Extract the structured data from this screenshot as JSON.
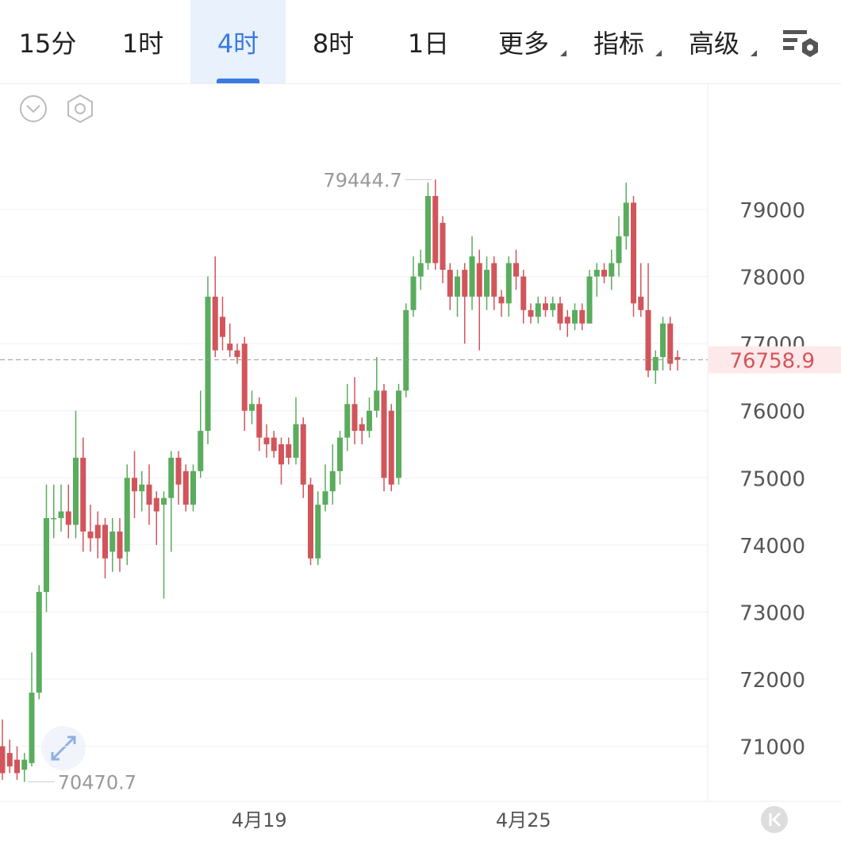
{
  "tabs": [
    "15分",
    "1时",
    "4时",
    "8时",
    "1日",
    "更多",
    "指标",
    "高级"
  ],
  "chart_data": {
    "type": "candlestick",
    "categories": [
      null,
      null,
      null,
      null,
      null,
      null,
      null,
      null,
      null,
      null,
      null,
      null,
      null,
      null,
      null,
      null,
      null,
      null,
      null,
      null,
      null,
      null,
      null,
      null,
      null,
      null,
      null,
      null,
      null,
      null,
      null,
      null,
      null,
      null,
      null,
      "4月19",
      null,
      null,
      null,
      null,
      null,
      null,
      null,
      null,
      null,
      null,
      null,
      null,
      null,
      null,
      null,
      null,
      null,
      null,
      null,
      null,
      null,
      null,
      null,
      null,
      null,
      null,
      null,
      null,
      null,
      null,
      null,
      null,
      null,
      null,
      null,
      "4月25",
      null,
      null,
      null,
      null,
      null,
      null,
      null,
      null,
      null,
      null,
      null,
      null,
      null,
      null,
      null,
      null,
      null,
      null,
      null,
      null,
      null
    ],
    "open": [
      71000,
      70900,
      70800,
      70650,
      70750,
      71800,
      73300,
      74400,
      74400,
      74500,
      74300,
      75300,
      74200,
      74300,
      74300,
      73900,
      74200,
      73900,
      75000,
      74800,
      74900,
      74700,
      74600,
      74700,
      75300,
      75100,
      74600,
      75100,
      75700,
      77700,
      77400,
      77000,
      76900,
      77000,
      76000,
      76100,
      75600,
      75600,
      75500,
      75500,
      75300,
      75800,
      74900,
      73800,
      74600,
      74800,
      75100,
      75600,
      76100,
      75800,
      75700,
      76000,
      76300,
      76000,
      75000,
      76300,
      77500,
      78000,
      78200,
      79200,
      78800,
      78100,
      77700,
      78100,
      77700,
      78200,
      77700,
      78200,
      77700,
      77600,
      78200,
      78000,
      77500,
      77400,
      77600,
      77500,
      77600,
      77400,
      77300,
      77500,
      77300,
      78000,
      78100,
      78000,
      78200,
      78600,
      79100,
      77700,
      77500,
      76600,
      76800,
      77300,
      76800
    ],
    "high": [
      71400,
      71100,
      71000,
      70900,
      72400,
      73400,
      74900,
      74900,
      74900,
      74900,
      76000,
      75600,
      74600,
      74500,
      74400,
      74400,
      74400,
      75200,
      75400,
      75100,
      75200,
      74800,
      74800,
      75400,
      75400,
      75200,
      75200,
      76300,
      78000,
      78300,
      77700,
      77300,
      77000,
      77100,
      76300,
      76200,
      75800,
      75700,
      75600,
      75600,
      76200,
      75900,
      75000,
      74800,
      75200,
      75500,
      75700,
      76400,
      76500,
      75900,
      76200,
      76800,
      76400,
      76100,
      76400,
      77600,
      78300,
      78400,
      79400,
      79444.7,
      78900,
      78200,
      78100,
      78200,
      78600,
      78400,
      78300,
      78300,
      77800,
      78300,
      78400,
      78100,
      77600,
      77700,
      77700,
      77700,
      77700,
      77500,
      77600,
      77600,
      78100,
      78200,
      78200,
      78400,
      78900,
      79400,
      79200,
      78200,
      78200,
      76900,
      77400,
      77400,
      76900
    ],
    "low": [
      70500,
      70600,
      70500,
      70470.7,
      70700,
      71700,
      73000,
      74100,
      74200,
      74100,
      74100,
      73900,
      73900,
      73800,
      73500,
      73600,
      73600,
      73700,
      74400,
      74500,
      74300,
      74000,
      73200,
      73900,
      74600,
      74500,
      74500,
      75000,
      75500,
      76800,
      76900,
      76800,
      76700,
      75700,
      75800,
      75400,
      75300,
      75300,
      74900,
      75200,
      75200,
      74700,
      73700,
      73700,
      74500,
      74600,
      74900,
      75400,
      75500,
      75500,
      75600,
      75900,
      74800,
      74800,
      74900,
      76200,
      77400,
      77800,
      78100,
      78100,
      77900,
      77500,
      77400,
      77000,
      77500,
      76900,
      77500,
      77500,
      77400,
      77400,
      77800,
      77300,
      77300,
      77300,
      77400,
      77400,
      77200,
      77100,
      77200,
      77200,
      77300,
      77700,
      77900,
      77800,
      78000,
      78400,
      77400,
      77400,
      76500,
      76400,
      76600,
      76600,
      76600
    ],
    "close": [
      70600,
      70700,
      70600,
      70800,
      71800,
      73300,
      74400,
      74400,
      74500,
      74300,
      75300,
      74200,
      74100,
      74100,
      73800,
      74200,
      73800,
      75000,
      74800,
      74900,
      74600,
      74500,
      74700,
      75300,
      74900,
      74600,
      75100,
      75700,
      77700,
      76900,
      77100,
      76900,
      76800,
      76000,
      76100,
      75600,
      75500,
      75400,
      75200,
      75300,
      75800,
      74900,
      73800,
      74600,
      74800,
      75100,
      75600,
      76100,
      75700,
      75700,
      76000,
      76300,
      75000,
      74900,
      76300,
      77500,
      78000,
      78200,
      79200,
      78200,
      78100,
      77700,
      78000,
      77700,
      78300,
      77700,
      78100,
      77700,
      77600,
      78200,
      78000,
      77500,
      77400,
      77600,
      77500,
      77600,
      77300,
      77300,
      77500,
      77300,
      78000,
      78100,
      78000,
      78200,
      78600,
      79100,
      77600,
      77500,
      76600,
      76800,
      77300,
      76700,
      76758.9
    ],
    "up_color": "#5aac5e",
    "down_color": "#d2555b",
    "ylim": [
      70180,
      80820
    ],
    "yticks": [
      71000,
      72000,
      73000,
      74000,
      75000,
      76000,
      77000,
      78000,
      79000
    ],
    "grid": true,
    "max_label": 79444.7,
    "min_label": 70470.7,
    "last_price": 76758.9
  }
}
